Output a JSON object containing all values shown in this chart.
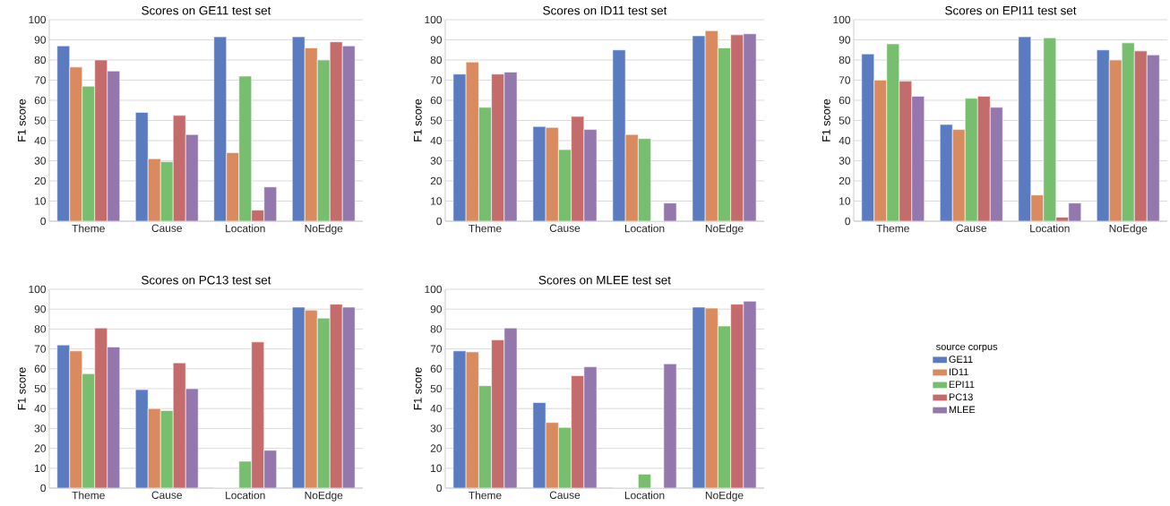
{
  "chart_data": [
    {
      "type": "bar",
      "title": "Scores on GE11 test set",
      "ylabel": "F1 score",
      "categories": [
        "Theme",
        "Cause",
        "Location",
        "NoEdge"
      ],
      "ylim": [
        0,
        100
      ],
      "yticks": [
        0,
        10,
        20,
        30,
        40,
        50,
        60,
        70,
        80,
        90,
        100
      ],
      "grid": "y",
      "legend": false,
      "series": [
        {
          "color": "#5a7bbf",
          "values": [
            87,
            54,
            91.5,
            91.5
          ]
        },
        {
          "color": "#d98b5f",
          "values": [
            76.5,
            31,
            34,
            86
          ]
        },
        {
          "color": "#77bf6f",
          "values": [
            67,
            29.5,
            72,
            80
          ]
        },
        {
          "color": "#c46b6b",
          "values": [
            80,
            52.5,
            5.5,
            89
          ]
        },
        {
          "color": "#9377ad",
          "values": [
            74.5,
            43,
            17,
            87
          ]
        }
      ]
    },
    {
      "type": "bar",
      "title": "Scores on ID11 test set",
      "ylabel": "F1 score",
      "categories": [
        "Theme",
        "Cause",
        "Location",
        "NoEdge"
      ],
      "ylim": [
        0,
        100
      ],
      "yticks": [
        0,
        10,
        20,
        30,
        40,
        50,
        60,
        70,
        80,
        90,
        100
      ],
      "grid": "y",
      "legend": false,
      "series": [
        {
          "color": "#5a7bbf",
          "values": [
            73,
            47,
            85,
            92
          ]
        },
        {
          "color": "#d98b5f",
          "values": [
            79,
            46.5,
            43,
            94.5
          ]
        },
        {
          "color": "#77bf6f",
          "values": [
            56.5,
            35.5,
            41,
            86
          ]
        },
        {
          "color": "#c46b6b",
          "values": [
            73,
            52,
            0,
            92.5
          ]
        },
        {
          "color": "#9377ad",
          "values": [
            74,
            45.5,
            9,
            93
          ]
        }
      ]
    },
    {
      "type": "bar",
      "title": "Scores on EPI11 test set",
      "ylabel": "F1 score",
      "categories": [
        "Theme",
        "Cause",
        "Location",
        "NoEdge"
      ],
      "ylim": [
        0,
        100
      ],
      "yticks": [
        0,
        10,
        20,
        30,
        40,
        50,
        60,
        70,
        80,
        90,
        100
      ],
      "grid": "y",
      "legend": false,
      "series": [
        {
          "color": "#5a7bbf",
          "values": [
            83,
            48,
            91.5,
            85
          ]
        },
        {
          "color": "#d98b5f",
          "values": [
            70,
            45.5,
            13,
            80
          ]
        },
        {
          "color": "#77bf6f",
          "values": [
            88,
            61,
            91,
            88.5
          ]
        },
        {
          "color": "#c46b6b",
          "values": [
            69.5,
            62,
            2,
            84.5
          ]
        },
        {
          "color": "#9377ad",
          "values": [
            62,
            56.5,
            9,
            82.5
          ]
        }
      ]
    },
    {
      "type": "bar",
      "title": "Scores on PC13 test set",
      "ylabel": "F1 score",
      "categories": [
        "Theme",
        "Cause",
        "Location",
        "NoEdge"
      ],
      "ylim": [
        0,
        100
      ],
      "yticks": [
        0,
        10,
        20,
        30,
        40,
        50,
        60,
        70,
        80,
        90,
        100
      ],
      "grid": "y",
      "legend": false,
      "series": [
        {
          "color": "#5a7bbf",
          "values": [
            72,
            49.5,
            0,
            91
          ]
        },
        {
          "color": "#d98b5f",
          "values": [
            69,
            40,
            0,
            89.5
          ]
        },
        {
          "color": "#77bf6f",
          "values": [
            57.5,
            39,
            13.5,
            85.5
          ]
        },
        {
          "color": "#c46b6b",
          "values": [
            80.5,
            63,
            73.5,
            92.5
          ]
        },
        {
          "color": "#9377ad",
          "values": [
            71,
            50,
            19,
            91
          ]
        }
      ]
    },
    {
      "type": "bar",
      "title": "Scores on MLEE test set",
      "ylabel": "F1 score",
      "categories": [
        "Theme",
        "Cause",
        "Location",
        "NoEdge"
      ],
      "ylim": [
        0,
        100
      ],
      "yticks": [
        0,
        10,
        20,
        30,
        40,
        50,
        60,
        70,
        80,
        90,
        100
      ],
      "grid": "y",
      "legend": "right",
      "legend_title": "source corpus",
      "series": [
        {
          "name": "GE11",
          "color": "#5a7bbf",
          "values": [
            69,
            43,
            0,
            91
          ]
        },
        {
          "name": "ID11",
          "color": "#d98b5f",
          "values": [
            68.5,
            33,
            0,
            90.5
          ]
        },
        {
          "name": "EPI11",
          "color": "#77bf6f",
          "values": [
            51.5,
            30.5,
            7,
            81.5
          ]
        },
        {
          "name": "PC13",
          "color": "#c46b6b",
          "values": [
            74.5,
            56.5,
            0,
            92.5
          ]
        },
        {
          "name": "MLEE",
          "color": "#9377ad",
          "values": [
            80.5,
            61,
            62.5,
            94
          ]
        }
      ]
    }
  ]
}
